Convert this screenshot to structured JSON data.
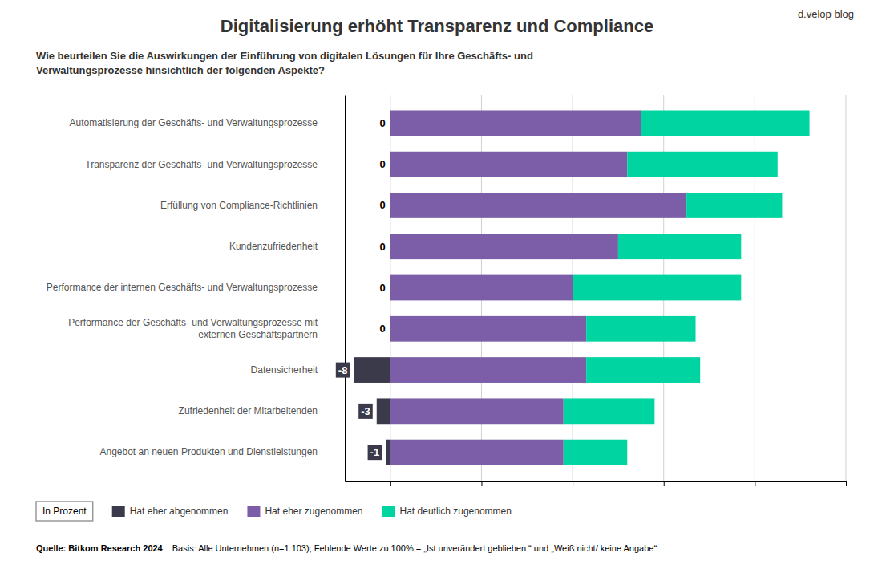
{
  "chart_data": {
    "type": "bar",
    "orientation": "horizontal",
    "stacked": true,
    "title": "Digitalisierung erhöht Transparenz und Compliance",
    "subtitle": [
      "Wie beurteilen Sie die Auswirkungen der Einführung von digitalen Lösungen für Ihre Geschäfts- und",
      "Verwaltungsprozesse hinsichtlich der folgenden Aspekte?"
    ],
    "annotations": [
      "d.velop blog",
      "In Prozent",
      "Quelle: Bitkom Research 2024",
      "Basis: Alle Unternehmen (n=1.103); Fehlende Werte zu 100% = „Ist unverändert geblieben “ und „Weiß nicht/ keine Angabe“"
    ],
    "categories": [
      "Automatisierung der Geschäfts- und Verwaltungsprozesse",
      "Transparenz der Geschäfts- und Verwaltungsprozesse",
      "Erfüllung von Compliance-Richtlinien",
      "Kundenzufriedenheit",
      "Performance der internen Geschäfts- und Verwaltungsprozesse",
      "Performance der Geschäfts- und Verwaltungsprozesse mit\nexternen Geschäftspartnern",
      "Datensicherheit",
      "Zufriedenheit der Mitarbeitenden",
      "Angebot an neuen Produkten und Dienstleistungen"
    ],
    "series": [
      {
        "name": "Hat eher abgenommen",
        "color": "#3a3a4a",
        "values": [
          0,
          0,
          0,
          0,
          0,
          0,
          -8,
          -3,
          -1
        ],
        "data_labels": true
      },
      {
        "name": "Hat eher zugenommen",
        "color": "#7b5ea7",
        "values": [
          55,
          52,
          65,
          50,
          40,
          43,
          43,
          38,
          38
        ]
      },
      {
        "name": "Hat deutlich zugenommen",
        "color": "#00d4a0",
        "values": [
          37,
          33,
          21,
          27,
          37,
          24,
          25,
          20,
          14
        ]
      }
    ],
    "xlim": [
      -10,
      100
    ],
    "xticks": [
      0,
      20,
      40,
      60,
      80,
      100
    ],
    "grid": true,
    "tick_labels": "y",
    "legend": "bottom"
  }
}
